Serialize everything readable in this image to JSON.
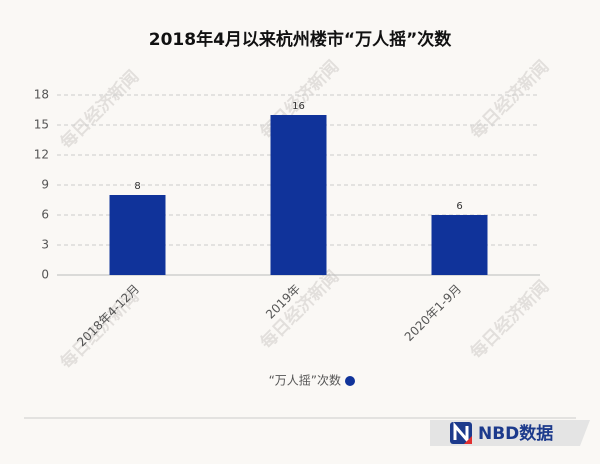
{
  "chart_data": {
    "type": "bar",
    "title": "2018年4月以来杭州楼市“万人摇”次数",
    "categories": [
      "2018年4-12月",
      "2019年",
      "2020年1-9月"
    ],
    "series": [
      {
        "name": "“万人摇”次数",
        "color": "#10339a",
        "values": [
          8,
          16,
          6
        ]
      }
    ],
    "ylim": [
      0,
      18
    ],
    "yticks": [
      0,
      3,
      6,
      9,
      12,
      15,
      18
    ],
    "grid": true,
    "legend": "bottom"
  },
  "watermark": "每日经济新闻",
  "footer": {
    "brand": "NBD数据"
  }
}
